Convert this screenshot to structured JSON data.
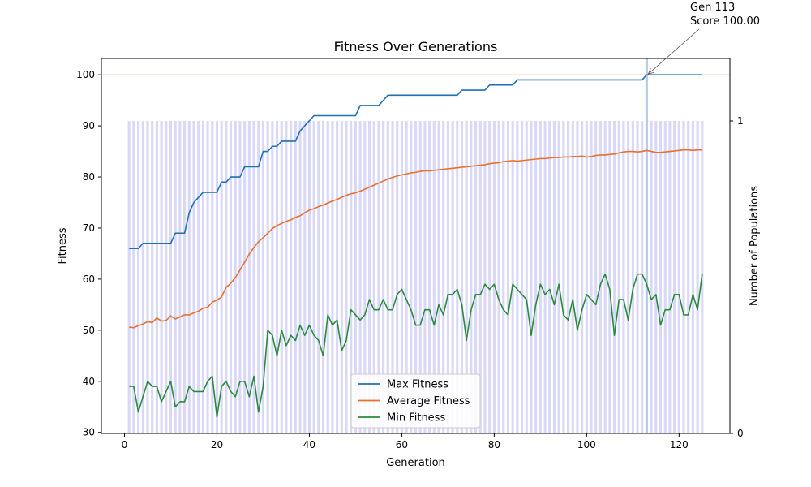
{
  "chart_data": {
    "type": "line",
    "title": "Fitness Over Generations",
    "xlabel": "Generation",
    "ylabel": "Fitness",
    "ylabel_right": "Number of Populations",
    "xlim": [
      -5,
      131
    ],
    "ylim": [
      29.8,
      103.2
    ],
    "ylim_right": [
      0,
      1.2
    ],
    "xticks": [
      0,
      20,
      40,
      60,
      80,
      100,
      120
    ],
    "yticks": [
      30,
      40,
      50,
      60,
      70,
      80,
      90,
      100
    ],
    "yticks_right": [
      0,
      1
    ],
    "grid": false,
    "legend_position": "bottom-center",
    "x_start": 1,
    "series": [
      {
        "name": "Max Fitness",
        "color": "#1f6fb4",
        "values": [
          66,
          66,
          66,
          67,
          67,
          67,
          67,
          67,
          67,
          67,
          69,
          69,
          69,
          73,
          75,
          76,
          77,
          77,
          77,
          77,
          79,
          79,
          80,
          80,
          80,
          82,
          82,
          82,
          82,
          85,
          85,
          86,
          86,
          87,
          87,
          87,
          87,
          89,
          90,
          91,
          92,
          92,
          92,
          92,
          92,
          92,
          92,
          92,
          92,
          92,
          94,
          94,
          94,
          94,
          94,
          95,
          96,
          96,
          96,
          96,
          96,
          96,
          96,
          96,
          96,
          96,
          96,
          96,
          96,
          96,
          96,
          96,
          97,
          97,
          97,
          97,
          97,
          97,
          98,
          98,
          98,
          98,
          98,
          98,
          99,
          99,
          99,
          99,
          99,
          99,
          99,
          99,
          99,
          99,
          99,
          99,
          99,
          99,
          99,
          99,
          99,
          99,
          99,
          99,
          99,
          99,
          99,
          99,
          99,
          99,
          99,
          99,
          100,
          100,
          100,
          100,
          100,
          100,
          100,
          100,
          100,
          100,
          100,
          100,
          100
        ]
      },
      {
        "name": "Average Fitness",
        "color": "#e8702a",
        "values": [
          50.6,
          50.5,
          50.9,
          51.2,
          51.7,
          51.5,
          52.4,
          51.8,
          51.9,
          52.8,
          52.2,
          52.6,
          53.0,
          53.0,
          53.4,
          53.7,
          54.3,
          54.5,
          55.5,
          55.9,
          56.5,
          58.4,
          59.2,
          60.3,
          61.8,
          63.3,
          64.9,
          66.2,
          67.3,
          68.1,
          69.0,
          69.9,
          70.5,
          70.9,
          71.3,
          71.6,
          72.1,
          72.4,
          73.0,
          73.5,
          73.8,
          74.2,
          74.5,
          74.9,
          75.3,
          75.6,
          76.0,
          76.4,
          76.7,
          76.9,
          77.2,
          77.6,
          78.0,
          78.4,
          78.8,
          79.2,
          79.6,
          79.9,
          80.2,
          80.4,
          80.6,
          80.8,
          80.9,
          81.1,
          81.2,
          81.2,
          81.3,
          81.4,
          81.5,
          81.6,
          81.7,
          81.8,
          81.9,
          82.0,
          82.1,
          82.2,
          82.3,
          82.4,
          82.6,
          82.7,
          82.8,
          83.0,
          83.1,
          83.2,
          83.1,
          83.2,
          83.3,
          83.4,
          83.5,
          83.6,
          83.6,
          83.7,
          83.8,
          83.8,
          83.9,
          83.9,
          84.0,
          84.0,
          84.1,
          83.9,
          84.0,
          84.2,
          84.3,
          84.3,
          84.4,
          84.5,
          84.7,
          84.9,
          85.0,
          85.0,
          84.9,
          85.0,
          85.2,
          85.0,
          84.8,
          84.8,
          84.9,
          85.0,
          85.1,
          85.2,
          85.3,
          85.3,
          85.2,
          85.3,
          85.3
        ]
      },
      {
        "name": "Min Fitness",
        "color": "#2a8a3c",
        "values": [
          39,
          39,
          34,
          37,
          40,
          39,
          39,
          36,
          38,
          40,
          35,
          36,
          36,
          39,
          38,
          38,
          38,
          40,
          41,
          33,
          39,
          40,
          38,
          37,
          40,
          40,
          37,
          41,
          34,
          39,
          50,
          49,
          45,
          50,
          47,
          49,
          48,
          51,
          49,
          51,
          49,
          48,
          45,
          53,
          51,
          52,
          46,
          48,
          54,
          53,
          52,
          53,
          56,
          54,
          54,
          56,
          54,
          54,
          57,
          58,
          56,
          54,
          51,
          51,
          54,
          54,
          51,
          55,
          53,
          57,
          57,
          58,
          55,
          48,
          54,
          57,
          57,
          59,
          58,
          59,
          56,
          54,
          53,
          59,
          58,
          57,
          56,
          49,
          55,
          59,
          57,
          58,
          55,
          59,
          53,
          52,
          56,
          50,
          54,
          57,
          56,
          55,
          59,
          61,
          58,
          49,
          56,
          56,
          52,
          58,
          61,
          61,
          59,
          56,
          57,
          51,
          54,
          54,
          57,
          57,
          53,
          53,
          57,
          54,
          61
        ]
      }
    ],
    "bars": {
      "color": "#d9d9f7",
      "value": 1
    },
    "highlight": {
      "x": 113,
      "color": "#b8cee8"
    },
    "hline": {
      "y": 100,
      "color": "#f4c7b0"
    },
    "annotation": {
      "line1": "Gen 113",
      "line2": "Score 100.00",
      "x": 113,
      "y": 100
    }
  }
}
